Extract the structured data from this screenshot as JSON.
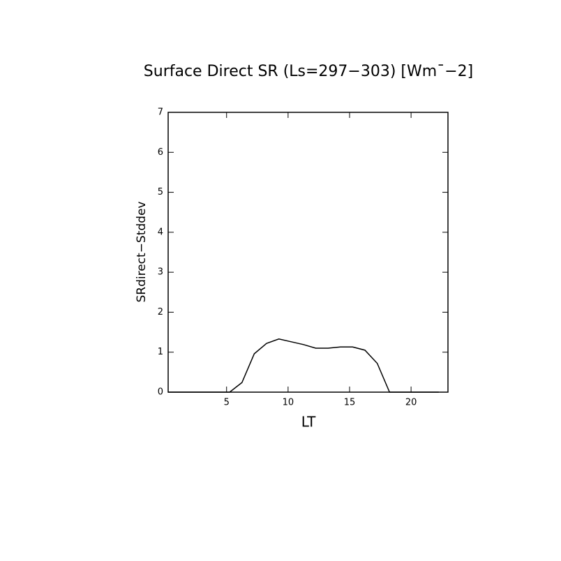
{
  "chart_data": {
    "type": "line",
    "title": "Surface Direct SR (Ls=297−303) [Wm¯−2]",
    "x_label": "LT",
    "y_label": "SRdirect−Stddev",
    "x": [
      0.25,
      1.25,
      2.25,
      3.25,
      4.25,
      5.25,
      6.25,
      7.25,
      8.25,
      9.25,
      10.25,
      11.25,
      12.25,
      13.25,
      14.25,
      15.25,
      16.25,
      17.25,
      18.25,
      19.25,
      20.25,
      21.25,
      22.25
    ],
    "series": [
      {
        "name": "SRdirect−Stddev",
        "color": "#000000",
        "values": [
          0,
          0,
          0,
          0,
          0,
          0,
          0.24,
          0.96,
          1.22,
          1.33,
          1.26,
          1.19,
          1.1,
          1.1,
          1.13,
          1.13,
          1.05,
          0.72,
          0,
          0,
          0,
          0,
          0
        ]
      }
    ],
    "xlim": [
      0.25,
      23
    ],
    "xticks": [
      5,
      10,
      15,
      20
    ],
    "ylim": [
      0,
      7
    ],
    "yticks": [
      0,
      1,
      2,
      3,
      4,
      5,
      6,
      7
    ]
  }
}
